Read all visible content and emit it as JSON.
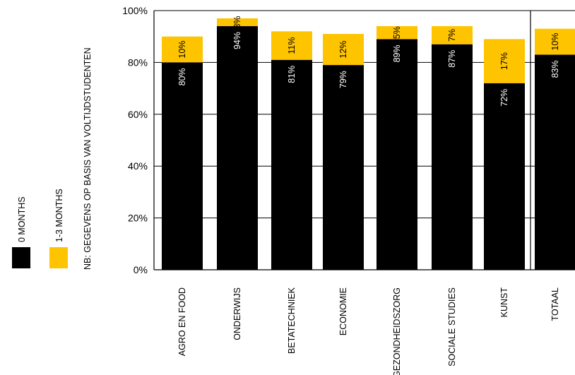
{
  "chart_data": {
    "type": "bar",
    "stacked": true,
    "categories": [
      "AGRO EN FOOD",
      "ONDERWIJS",
      "BETATECHNIEK",
      "ECONOMIE",
      "GEZONDHEIDSZORG",
      "SOCIALE STUDIES",
      "KUNST",
      "TOTAAL"
    ],
    "series": [
      {
        "name": "0 MONTHS",
        "color": "#000000",
        "values": [
          80,
          94,
          81,
          79,
          89,
          87,
          72,
          83
        ],
        "labels": [
          "80%",
          "94%",
          "81%",
          "79%",
          "89%",
          "87%",
          "72%",
          "83%"
        ]
      },
      {
        "name": "1-3 MONTHS",
        "color": "#FFC400",
        "values": [
          10,
          3,
          11,
          12,
          5,
          7,
          17,
          10
        ],
        "labels": [
          "10%",
          "3%",
          "11%",
          "12%",
          "5%",
          "7%",
          "17%",
          "10%"
        ]
      }
    ],
    "ylim": [
      0,
      100
    ],
    "yticks": [
      0,
      20,
      40,
      60,
      80,
      100
    ],
    "ytick_labels": [
      "0%",
      "20%",
      "40%",
      "60%",
      "80%",
      "100%"
    ],
    "grid": true,
    "legend_position": "left-vertical",
    "note": "NB: GEGEVENS OP BASIS VAN VOLTIJDSTUDENTEN"
  }
}
